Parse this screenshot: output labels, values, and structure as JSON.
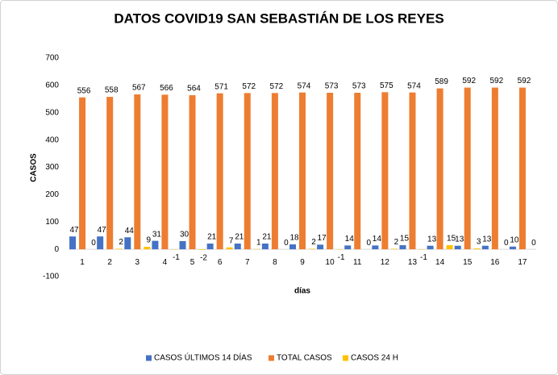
{
  "chart_data": {
    "type": "bar",
    "title": "DATOS COVID19 SAN SEBASTIÁN DE LOS REYES",
    "x_label": "días",
    "y_label": "CASOS",
    "categories": [
      "1",
      "2",
      "3",
      "4",
      "5",
      "6",
      "7",
      "8",
      "9",
      "10",
      "11",
      "12",
      "13",
      "14",
      "15",
      "16",
      "17"
    ],
    "series": [
      {
        "name": "CASOS ÚLTIMOS 14 DÍAS",
        "color": "#4472c4",
        "values": [
          47,
          47,
          44,
          31,
          30,
          21,
          21,
          21,
          18,
          17,
          14,
          14,
          15,
          13,
          13,
          13,
          10
        ]
      },
      {
        "name": "TOTAL CASOS",
        "color": "#ed7d31",
        "values": [
          556,
          558,
          567,
          566,
          564,
          571,
          572,
          572,
          574,
          573,
          573,
          575,
          574,
          589,
          592,
          592,
          592
        ]
      },
      {
        "name": "CASOS 24 H",
        "color": "#ffc000",
        "values": [
          0,
          2,
          9,
          -1,
          -2,
          7,
          1,
          0,
          2,
          -1,
          0,
          2,
          -1,
          15,
          3,
          0,
          0
        ]
      }
    ],
    "ylim": [
      -100,
      700
    ],
    "yticks": [
      -100,
      0,
      100,
      200,
      300,
      400,
      500,
      600,
      700
    ],
    "grid": false,
    "legend": "bottom"
  }
}
